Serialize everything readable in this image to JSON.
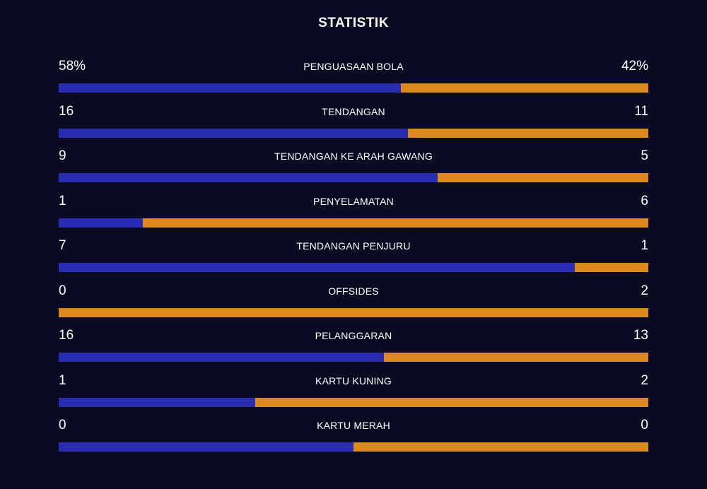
{
  "title": "STATISTIK",
  "colors": {
    "background": "#0a0a23",
    "home": "#2a2cb3",
    "away": "#dd8a1c",
    "text": "#ffffff"
  },
  "chart_data": {
    "type": "bar",
    "orientation": "horizontal-stacked",
    "title": "STATISTIK",
    "categories": [
      "PENGUASAAN BOLA",
      "TENDANGAN",
      "TENDANGAN KE ARAH GAWANG",
      "PENYELAMATAN",
      "TENDANGAN PENJURU",
      "OFFSIDES",
      "PELANGGARAN",
      "KARTU KUNING",
      "KARTU MERAH"
    ],
    "home_labels": [
      "58%",
      "16",
      "9",
      "1",
      "7",
      "0",
      "16",
      "1",
      "0"
    ],
    "away_labels": [
      "42%",
      "11",
      "5",
      "6",
      "1",
      "2",
      "13",
      "2",
      "0"
    ],
    "series": [
      {
        "values": [
          58,
          16,
          9,
          1,
          7,
          0,
          16,
          1,
          0
        ]
      },
      {
        "values": [
          42,
          11,
          5,
          6,
          1,
          2,
          13,
          2,
          0
        ]
      }
    ]
  }
}
